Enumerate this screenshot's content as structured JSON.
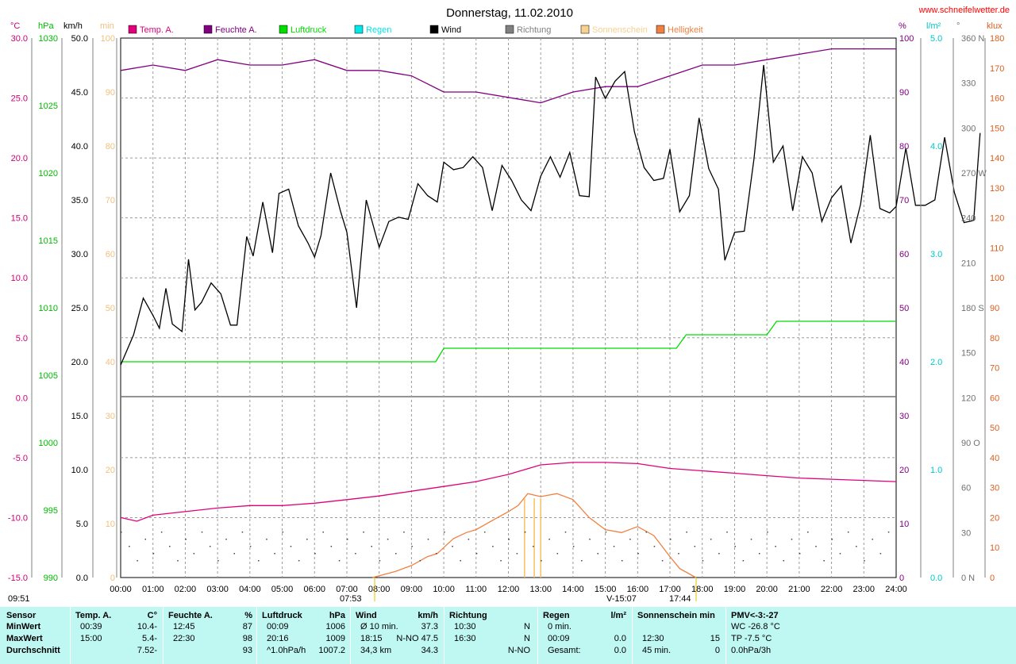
{
  "title": "Donnerstag, 11.02.2010",
  "site": "www.schneifelwetter.de",
  "legend": [
    {
      "label": "Temp. A.",
      "color": "#e0007a"
    },
    {
      "label": "Feuchte A.",
      "color": "#800080"
    },
    {
      "label": "Luftdruck",
      "color": "#00dd00"
    },
    {
      "label": "Regen",
      "color": "#00e8e8"
    },
    {
      "label": "Wind",
      "color": "#000000"
    },
    {
      "label": "Richtung",
      "color": "#808080"
    },
    {
      "label": "Sonnenschein",
      "color": "#f8d090"
    },
    {
      "label": "Helligkeit",
      "color": "#f08040"
    }
  ],
  "units": {
    "temp": "°C",
    "hpa": "hPa",
    "kmh": "km/h",
    "min": "min",
    "pct": "%",
    "rain": "l/m²",
    "deg": "°",
    "klux": "klux"
  },
  "axes": {
    "temp": [
      "30.0",
      "25.0",
      "20.0",
      "15.0",
      "10.0",
      "5.0",
      "0.0",
      "-5.0",
      "-10.0",
      "-15.0"
    ],
    "hpa": [
      "1030",
      "1025",
      "1020",
      "1015",
      "1010",
      "1005",
      "1000",
      "995",
      "990"
    ],
    "kmh_upper": [
      "50.0",
      "45.0",
      "40.0",
      "35.0",
      "30.0",
      "25.0",
      "20.0"
    ],
    "kmh_lower": [
      "15.0",
      "10.0",
      "5.0",
      "0.0"
    ],
    "min_upper": [
      "100",
      "90",
      "80",
      "70",
      "60",
      "50",
      "40"
    ],
    "min_lower": [
      "30",
      "20",
      "10",
      "0"
    ],
    "pct_upper": [
      "100",
      "90",
      "80",
      "70",
      "60",
      "50",
      "40"
    ],
    "pct_lower": [
      "30",
      "20",
      "10",
      "0"
    ],
    "rain": [
      "5.0",
      "4.0",
      "3.0",
      "2.0",
      "1.0",
      "0.0"
    ],
    "deg": [
      "360 N",
      "330",
      "300",
      "270 W",
      "240",
      "210",
      "180 S",
      "150",
      "120",
      "90  O",
      "60",
      "30",
      "0   N"
    ],
    "klux": [
      "180",
      "170",
      "160",
      "150",
      "140",
      "130",
      "120",
      "110",
      "100",
      "90",
      "80",
      "70",
      "60",
      "50",
      "40",
      "30",
      "20",
      "10",
      "0"
    ],
    "time": [
      "00:00",
      "01:00",
      "02:00",
      "03:00",
      "04:00",
      "05:00",
      "06:00",
      "07:00",
      "08:00",
      "09:00",
      "10:00",
      "11:00",
      "12:00",
      "13:00",
      "14:00",
      "15:00",
      "16:00",
      "17:00",
      "18:00",
      "19:00",
      "20:00",
      "21:00",
      "22:00",
      "23:00",
      "24:00"
    ]
  },
  "sun_marks": {
    "sunrise": "07:53",
    "sunset": "17:44",
    "noon": "V-15:07"
  },
  "footer_left": "09:51",
  "chart_data": {
    "type": "line",
    "x_unit": "hours",
    "series": [
      {
        "name": "Temp. A.",
        "unit": "°C",
        "color": "#e0007a",
        "points": [
          [
            0,
            -10.0
          ],
          [
            0.5,
            -10.3
          ],
          [
            1,
            -9.8
          ],
          [
            2,
            -9.5
          ],
          [
            3,
            -9.2
          ],
          [
            4,
            -9.0
          ],
          [
            5,
            -9.0
          ],
          [
            6,
            -8.8
          ],
          [
            7,
            -8.5
          ],
          [
            8,
            -8.2
          ],
          [
            9,
            -7.8
          ],
          [
            10,
            -7.4
          ],
          [
            11,
            -7.0
          ],
          [
            12,
            -6.4
          ],
          [
            12.5,
            -6.0
          ],
          [
            13,
            -5.6
          ],
          [
            14,
            -5.4
          ],
          [
            15,
            -5.4
          ],
          [
            16,
            -5.5
          ],
          [
            17,
            -5.9
          ],
          [
            18,
            -6.1
          ],
          [
            19,
            -6.3
          ],
          [
            20,
            -6.5
          ],
          [
            21,
            -6.7
          ],
          [
            22,
            -6.8
          ],
          [
            23,
            -6.9
          ],
          [
            24,
            -7.0
          ]
        ]
      },
      {
        "name": "Feuchte A.",
        "unit": "%",
        "color": "#800080",
        "points": [
          [
            0,
            94
          ],
          [
            1,
            95
          ],
          [
            2,
            94
          ],
          [
            3,
            96
          ],
          [
            4,
            95
          ],
          [
            5,
            95
          ],
          [
            6,
            96
          ],
          [
            7,
            94
          ],
          [
            8,
            94
          ],
          [
            9,
            93
          ],
          [
            10,
            90
          ],
          [
            11,
            90
          ],
          [
            12,
            89
          ],
          [
            13,
            88
          ],
          [
            14,
            90
          ],
          [
            15,
            91
          ],
          [
            16,
            91
          ],
          [
            17,
            93
          ],
          [
            18,
            95
          ],
          [
            19,
            95
          ],
          [
            20,
            96
          ],
          [
            21,
            97
          ],
          [
            22,
            98
          ],
          [
            23,
            98
          ],
          [
            24,
            98
          ]
        ]
      },
      {
        "name": "Luftdruck",
        "unit": "hPa",
        "color": "#00dd00",
        "points": [
          [
            0,
            1006
          ],
          [
            9.75,
            1006
          ],
          [
            10,
            1007
          ],
          [
            17.2,
            1007
          ],
          [
            17.5,
            1008
          ],
          [
            20,
            1008
          ],
          [
            20.3,
            1009
          ],
          [
            24,
            1009
          ]
        ]
      },
      {
        "name": "Wind",
        "unit": "km/h",
        "color": "#000000",
        "points": [
          [
            0,
            19.7
          ],
          [
            0.4,
            22.5
          ],
          [
            0.7,
            25.9
          ],
          [
            1,
            24.3
          ],
          [
            1.2,
            23.1
          ],
          [
            1.4,
            26.8
          ],
          [
            1.6,
            23.5
          ],
          [
            1.9,
            22.8
          ],
          [
            2.1,
            29.5
          ],
          [
            2.3,
            24.8
          ],
          [
            2.5,
            25.5
          ],
          [
            2.8,
            27.3
          ],
          [
            3.1,
            26.3
          ],
          [
            3.4,
            23.4
          ],
          [
            3.6,
            23.4
          ],
          [
            3.9,
            31.6
          ],
          [
            4.1,
            29.8
          ],
          [
            4.4,
            34.8
          ],
          [
            4.7,
            30.1
          ],
          [
            4.9,
            35.6
          ],
          [
            5.2,
            36.0
          ],
          [
            5.5,
            32.6
          ],
          [
            5.8,
            31.0
          ],
          [
            6,
            29.7
          ],
          [
            6.2,
            31.7
          ],
          [
            6.5,
            37.5
          ],
          [
            6.8,
            34.0
          ],
          [
            7,
            32.0
          ],
          [
            7.3,
            25.0
          ],
          [
            7.6,
            35.0
          ],
          [
            8,
            30.6
          ],
          [
            8.3,
            33.0
          ],
          [
            8.6,
            33.4
          ],
          [
            8.9,
            33.2
          ],
          [
            9.2,
            36.5
          ],
          [
            9.5,
            35.4
          ],
          [
            9.8,
            34.8
          ],
          [
            10,
            38.5
          ],
          [
            10.3,
            37.8
          ],
          [
            10.6,
            38.0
          ],
          [
            10.9,
            39.0
          ],
          [
            11.2,
            38.0
          ],
          [
            11.5,
            34.0
          ],
          [
            11.8,
            38.2
          ],
          [
            12.1,
            36.8
          ],
          [
            12.4,
            35.0
          ],
          [
            12.7,
            34.0
          ],
          [
            13,
            37.2
          ],
          [
            13.3,
            39.0
          ],
          [
            13.6,
            37.1
          ],
          [
            13.9,
            39.4
          ],
          [
            14.2,
            35.4
          ],
          [
            14.5,
            35.3
          ],
          [
            14.7,
            46.4
          ],
          [
            15,
            44.4
          ],
          [
            15.3,
            46.0
          ],
          [
            15.6,
            46.9
          ],
          [
            15.9,
            41.3
          ],
          [
            16.2,
            38.0
          ],
          [
            16.5,
            36.8
          ],
          [
            16.8,
            37.0
          ],
          [
            17,
            39.7
          ],
          [
            17.3,
            33.9
          ],
          [
            17.6,
            35.4
          ],
          [
            17.9,
            42.6
          ],
          [
            18.2,
            37.9
          ],
          [
            18.5,
            36.0
          ],
          [
            18.7,
            29.4
          ],
          [
            19,
            32.0
          ],
          [
            19.3,
            32.1
          ],
          [
            19.6,
            38.8
          ],
          [
            19.9,
            47.5
          ],
          [
            20.2,
            38.5
          ],
          [
            20.5,
            40.0
          ],
          [
            20.8,
            34.0
          ],
          [
            21.1,
            39.0
          ],
          [
            21.4,
            37.5
          ],
          [
            21.7,
            33.0
          ],
          [
            22,
            35.2
          ],
          [
            22.3,
            36.3
          ],
          [
            22.6,
            31.0
          ],
          [
            22.9,
            34.6
          ],
          [
            23.2,
            41.0
          ],
          [
            23.5,
            34.2
          ],
          [
            23.8,
            33.8
          ],
          [
            24,
            34.4
          ],
          [
            24.3,
            39.8
          ],
          [
            24.6,
            34.5
          ],
          [
            24.9,
            34.5
          ],
          [
            25.2,
            35.0
          ],
          [
            25.5,
            40.8
          ],
          [
            25.8,
            35.7
          ],
          [
            26.1,
            32.9
          ],
          [
            26.4,
            33.1
          ],
          [
            26.6,
            41.2
          ]
        ]
      },
      {
        "name": "Helligkeit",
        "unit": "klux",
        "color": "#f08040",
        "points": [
          [
            7.8,
            0
          ],
          [
            8.5,
            2
          ],
          [
            9,
            4
          ],
          [
            9.5,
            7
          ],
          [
            9.8,
            8
          ],
          [
            10,
            10
          ],
          [
            10.3,
            13
          ],
          [
            10.7,
            15
          ],
          [
            11,
            16
          ],
          [
            11.5,
            19
          ],
          [
            12,
            22
          ],
          [
            12.3,
            24
          ],
          [
            12.6,
            28
          ],
          [
            13,
            27
          ],
          [
            13.5,
            28
          ],
          [
            14,
            26
          ],
          [
            14.5,
            20
          ],
          [
            15,
            16
          ],
          [
            15.5,
            15
          ],
          [
            16,
            17
          ],
          [
            16.5,
            14
          ],
          [
            17,
            7
          ],
          [
            17.3,
            3
          ],
          [
            17.8,
            0
          ]
        ]
      }
    ]
  },
  "stats": {
    "sensor": {
      "header": "Sensor",
      "rows": [
        "MinWert",
        "MaxWert",
        "Durchschnitt"
      ]
    },
    "temp": {
      "header": "Temp. A.",
      "unit": "°C",
      "rows": [
        [
          "00:39",
          "-10.4"
        ],
        [
          "15:00",
          "-5.4"
        ],
        [
          "",
          "-7.52"
        ]
      ]
    },
    "feuchte": {
      "header": "Feuchte A.",
      "unit": "%",
      "rows": [
        [
          "12:45",
          "87"
        ],
        [
          "22:30",
          "98"
        ],
        [
          "",
          "93"
        ]
      ]
    },
    "druck": {
      "header": "Luftdruck",
      "unit": "hPa",
      "rows": [
        [
          "00:09",
          "1006"
        ],
        [
          "20:16",
          "1009"
        ],
        [
          "^1.0hPa/h",
          "1007.2"
        ]
      ]
    },
    "wind": {
      "header": "Wind",
      "unit": "km/h",
      "rows": [
        [
          "Ø 10 min.",
          "37.3"
        ],
        [
          "18:15",
          "N-NO 47.5"
        ],
        [
          "34,3 km",
          "34.3"
        ]
      ]
    },
    "richtung": {
      "header": "Richtung",
      "rows": [
        [
          "10:30",
          "N"
        ],
        [
          "16:30",
          "N"
        ],
        [
          "",
          "N-NO"
        ]
      ]
    },
    "regen": {
      "header": "Regen",
      "unit": "l/m²",
      "rows": [
        [
          "0 min.",
          ""
        ],
        [
          "00:09",
          "0.0"
        ],
        [
          "Gesamt:",
          "0.0"
        ]
      ]
    },
    "sonne": {
      "header": "Sonnenschein min",
      "rows": [
        [
          "",
          ""
        ],
        [
          "12:30",
          "15"
        ],
        [
          "45 min.",
          "0"
        ]
      ]
    },
    "pmv": {
      "header": "PMV<-3:-27",
      "rows": [
        "WC -26.8 °C",
        "TP -7.5 °C",
        "0.0hPa/3h"
      ]
    }
  }
}
